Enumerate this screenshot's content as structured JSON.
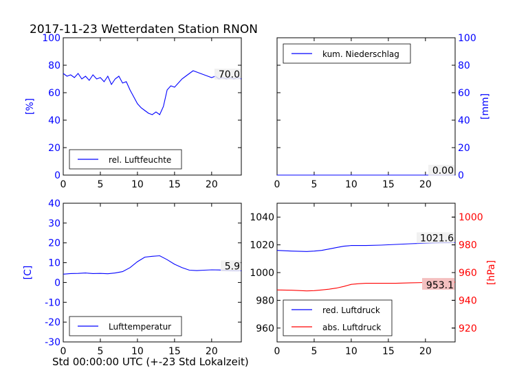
{
  "title": "2017-11-23 Wetterdaten Station RNON",
  "xlabel": "Std 00:00:00 UTC (+-23 Std Lokalzeit)",
  "chart_data": [
    {
      "id": "humidity",
      "type": "line",
      "ylabel": "[%]",
      "ylabel_color": "#0000ff",
      "ylim": [
        0,
        100
      ],
      "yticks": [
        0,
        20,
        40,
        60,
        80,
        100
      ],
      "xlim": [
        0,
        24
      ],
      "xticks": [
        0,
        5,
        10,
        15,
        20
      ],
      "legend": "lower-left",
      "annotation": "70.0",
      "series": [
        {
          "name": "rel. Luftfeuchte",
          "color": "#0000ff",
          "x": [
            0,
            0.5,
            1,
            1.5,
            2,
            2.5,
            3,
            3.5,
            4,
            4.5,
            5,
            5.5,
            6,
            6.5,
            7,
            7.5,
            8,
            8.5,
            9,
            9.5,
            10,
            10.5,
            11,
            11.5,
            12,
            12.5,
            13,
            13.5,
            14,
            14.5,
            15,
            15.5,
            16,
            16.5,
            17,
            17.5,
            18,
            18.5,
            19,
            19.5,
            20,
            20.5,
            21,
            21.5,
            22,
            22.5,
            23,
            23.5,
            24
          ],
          "y": [
            74,
            72,
            73,
            71,
            74,
            70,
            72,
            69,
            73,
            70,
            71,
            68,
            72,
            66,
            70,
            72,
            67,
            68,
            62,
            57,
            52,
            49,
            47,
            45,
            44,
            46,
            44,
            50,
            62,
            65,
            64,
            67,
            70,
            72,
            74,
            76,
            75,
            74,
            73,
            72,
            71,
            72,
            70,
            71,
            70,
            71,
            70,
            71,
            70
          ]
        }
      ]
    },
    {
      "id": "precipitation",
      "type": "line",
      "ylabel": "[mm]",
      "ylabel_color": "#0000ff",
      "yaxis_side": "right",
      "ylim": [
        0,
        100
      ],
      "yticks": [
        0,
        20,
        40,
        60,
        80,
        100
      ],
      "xlim": [
        0,
        24
      ],
      "xticks": [
        0,
        5,
        10,
        15,
        20
      ],
      "legend": "upper-left",
      "annotation": "0.00",
      "series": [
        {
          "name": "kum. Niederschlag",
          "color": "#0000ff",
          "x": [
            0,
            24
          ],
          "y": [
            0,
            0
          ]
        }
      ]
    },
    {
      "id": "temperature",
      "type": "line",
      "ylabel": "[C]",
      "ylabel_color": "#0000ff",
      "ylim": [
        -30,
        40
      ],
      "yticks": [
        -30,
        -20,
        -10,
        0,
        10,
        20,
        30,
        40
      ],
      "xlim": [
        0,
        24
      ],
      "xticks": [
        0,
        5,
        10,
        15,
        20
      ],
      "legend": "lower-left",
      "annotation": "5.9",
      "series": [
        {
          "name": "Lufttemperatur",
          "color": "#0000ff",
          "x": [
            0,
            1,
            2,
            3,
            4,
            5,
            6,
            7,
            8,
            9,
            10,
            11,
            12,
            13,
            14,
            15,
            16,
            17,
            18,
            19,
            20,
            21,
            22,
            23,
            24
          ],
          "y": [
            4.2,
            4.5,
            4.6,
            4.8,
            4.5,
            4.6,
            4.4,
            4.8,
            5.5,
            7.5,
            10.5,
            12.8,
            13.2,
            13.5,
            11.5,
            9.2,
            7.5,
            6.2,
            6.0,
            6.2,
            6.4,
            6.3,
            6.1,
            5.9,
            5.9
          ]
        }
      ]
    },
    {
      "id": "pressure",
      "type": "line",
      "ylabel": "[hPa]",
      "ylabel_color": "#ff0000",
      "ylim": [
        950,
        1050
      ],
      "yticks": [
        960,
        980,
        1000,
        1020,
        1040
      ],
      "y2lim": [
        910,
        1010
      ],
      "y2ticks": [
        920,
        940,
        960,
        980,
        1000
      ],
      "xlim": [
        0,
        24
      ],
      "xticks": [
        0,
        5,
        10,
        15,
        20
      ],
      "legend": "lower-left",
      "annotations": [
        "1021.6",
        "953.1"
      ],
      "series": [
        {
          "name": "red. Luftdruck",
          "color": "#0000ff",
          "axis": "left",
          "x": [
            0,
            2,
            4,
            5,
            6,
            7,
            8,
            9,
            10,
            12,
            14,
            16,
            18,
            20,
            22,
            24
          ],
          "y": [
            1016,
            1015.5,
            1015.2,
            1015.5,
            1016,
            1017,
            1018,
            1019,
            1019.5,
            1019.5,
            1019.8,
            1020.3,
            1020.8,
            1021.2,
            1021.5,
            1021.6
          ]
        },
        {
          "name": "abs. Luftdruck",
          "color": "#ff0000",
          "axis": "right",
          "x": [
            0,
            2,
            4,
            5,
            6,
            7,
            8,
            9,
            10,
            11,
            12,
            14,
            16,
            18,
            20,
            22,
            24
          ],
          "y": [
            947.5,
            947.3,
            946.8,
            947.0,
            947.5,
            948.0,
            948.8,
            950.0,
            951.5,
            952.0,
            952.3,
            952.3,
            952.3,
            952.6,
            952.8,
            953.0,
            953.1
          ]
        }
      ]
    }
  ]
}
